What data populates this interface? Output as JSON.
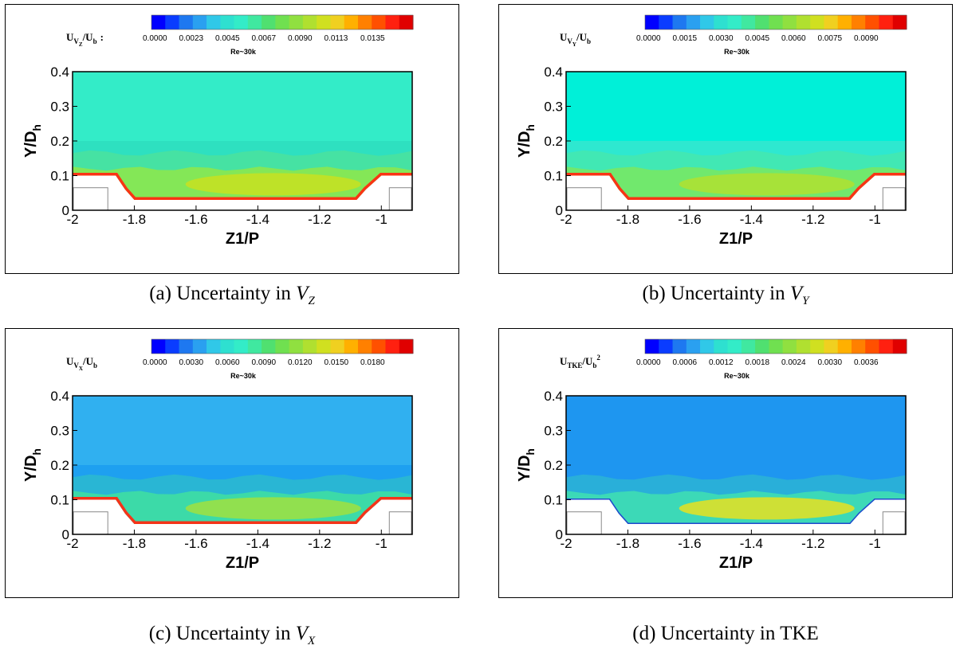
{
  "panels": [
    {
      "id": "a",
      "caption": {
        "prefix": "(a) Uncertainty in ",
        "var_main": "V",
        "var_sub": "Z"
      },
      "colorbar": {
        "label": "U_VZ/U_b",
        "label_main": "U",
        "label_sub": "V",
        "label_subsub": "Z",
        "label_rest": "/U",
        "label_rest_sub": "b",
        "has_colon": true,
        "tick_labels": [
          "0.0000",
          "0.0023",
          "0.0045",
          "0.0067",
          "0.0090",
          "0.0113",
          "0.0135"
        ],
        "re_label": "Re~30k"
      },
      "field": {
        "bulk": "#2ee0c0",
        "upper": "#33ecc8",
        "near_wall": "#8fe84a",
        "hot": "#c8e020",
        "wall_edge": "#ff2a10"
      }
    },
    {
      "id": "b",
      "caption": {
        "prefix": "(b) Uncertainty in ",
        "var_main": "V",
        "var_sub": "Y"
      },
      "colorbar": {
        "label": "U_VY/U_b",
        "label_main": "U",
        "label_sub": "V",
        "label_subsub": "Y",
        "label_rest": "/U",
        "label_rest_sub": "b",
        "has_colon": false,
        "tick_labels": [
          "0.0000",
          "0.0015",
          "0.0030",
          "0.0045",
          "0.0060",
          "0.0075",
          "0.0090"
        ],
        "re_label": "Re~30k"
      },
      "field": {
        "bulk": "#2ee8d0",
        "upper": "#00f0d8",
        "near_wall": "#7ae860",
        "hot": "#b0e030",
        "wall_edge": "#ff2a10"
      }
    },
    {
      "id": "c",
      "caption": {
        "prefix": "(c) Uncertainty in ",
        "var_main": "V",
        "var_sub": "X"
      },
      "colorbar": {
        "label": "U_VX/U_b",
        "label_main": "U",
        "label_sub": "V",
        "label_subsub": "X",
        "label_rest": "/U",
        "label_rest_sub": "b",
        "has_colon": false,
        "tick_labels": [
          "0.0000",
          "0.0030",
          "0.0060",
          "0.0090",
          "0.0120",
          "0.0150",
          "0.0180"
        ],
        "re_label": "Re~30k"
      },
      "field": {
        "bulk": "#1ea0f0",
        "upper": "#30b0f0",
        "near_wall": "#40e0a0",
        "hot": "#a0e040",
        "wall_edge": "#ff2a10"
      }
    },
    {
      "id": "d",
      "caption": {
        "prefix": "(d) Uncertainty in TKE",
        "var_main": "",
        "var_sub": ""
      },
      "colorbar": {
        "label": "U_TKE/U_b^2",
        "label_main": "U",
        "label_sub": "TKE",
        "label_subsub": "",
        "label_rest": "/U",
        "label_rest_sub": "b",
        "has_colon": false,
        "tick_labels": [
          "0.0000",
          "0.0006",
          "0.0012",
          "0.0018",
          "0.0024",
          "0.0030",
          "0.0036"
        ],
        "re_label": "Re~30k"
      },
      "field": {
        "bulk": "#1e96f0",
        "upper": "#1e96f0",
        "near_wall": "#40e0b0",
        "hot": "#e8e020",
        "wall_edge": "#2040d0"
      }
    }
  ],
  "axes": {
    "xlabel": "Z1/P",
    "ylabel": "Y/D",
    "ylabel_sub": "h",
    "xlim": [
      -2.0,
      -0.9
    ],
    "ylim": [
      0,
      0.4
    ],
    "x_ticks": [
      "-2",
      "-1.8",
      "-1.6",
      "-1.4",
      "-1.2",
      "-1"
    ],
    "y_ticks": [
      "0",
      "0.1",
      "0.2",
      "0.3",
      "0.4"
    ]
  },
  "colormap": [
    "#0000ff",
    "#0a3cff",
    "#1e78f0",
    "#2aa0f0",
    "#30c8e8",
    "#2ee0d0",
    "#33ecc8",
    "#40e8a0",
    "#50e070",
    "#70e050",
    "#90e040",
    "#b0e030",
    "#d0e020",
    "#f0d020",
    "#ffb000",
    "#ff8000",
    "#ff5000",
    "#ff2010",
    "#e00000"
  ],
  "chart_data": [
    {
      "type": "heatmap",
      "title": "",
      "xlabel": "Z1/P",
      "ylabel": "Y/D_h",
      "xlim": [
        -2.0,
        -0.9
      ],
      "ylim": [
        0,
        0.4
      ],
      "colorbar_label": "U_VZ/U_b",
      "colorbar_ticks": [
        0.0,
        0.0023,
        0.0045,
        0.0067,
        0.009,
        0.0113,
        0.0135
      ],
      "annotation": "Re~30k"
    },
    {
      "type": "heatmap",
      "title": "",
      "xlabel": "Z1/P",
      "ylabel": "Y/D_h",
      "xlim": [
        -2.0,
        -0.9
      ],
      "ylim": [
        0,
        0.4
      ],
      "colorbar_label": "U_VY/U_b",
      "colorbar_ticks": [
        0.0,
        0.0015,
        0.003,
        0.0045,
        0.006,
        0.0075,
        0.009
      ],
      "annotation": "Re~30k"
    },
    {
      "type": "heatmap",
      "title": "",
      "xlabel": "Z1/P",
      "ylabel": "Y/D_h",
      "xlim": [
        -2.0,
        -0.9
      ],
      "ylim": [
        0,
        0.4
      ],
      "colorbar_label": "U_VX/U_b",
      "colorbar_ticks": [
        0.0,
        0.003,
        0.006,
        0.009,
        0.012,
        0.015,
        0.018
      ],
      "annotation": "Re~30k"
    },
    {
      "type": "heatmap",
      "title": "",
      "xlabel": "Z1/P",
      "ylabel": "Y/D_h",
      "xlim": [
        -2.0,
        -0.9
      ],
      "ylim": [
        0,
        0.4
      ],
      "colorbar_label": "U_TKE/U_b^2",
      "colorbar_ticks": [
        0.0,
        0.0006,
        0.0012,
        0.0018,
        0.0024,
        0.003,
        0.0036
      ],
      "annotation": "Re~30k"
    }
  ]
}
